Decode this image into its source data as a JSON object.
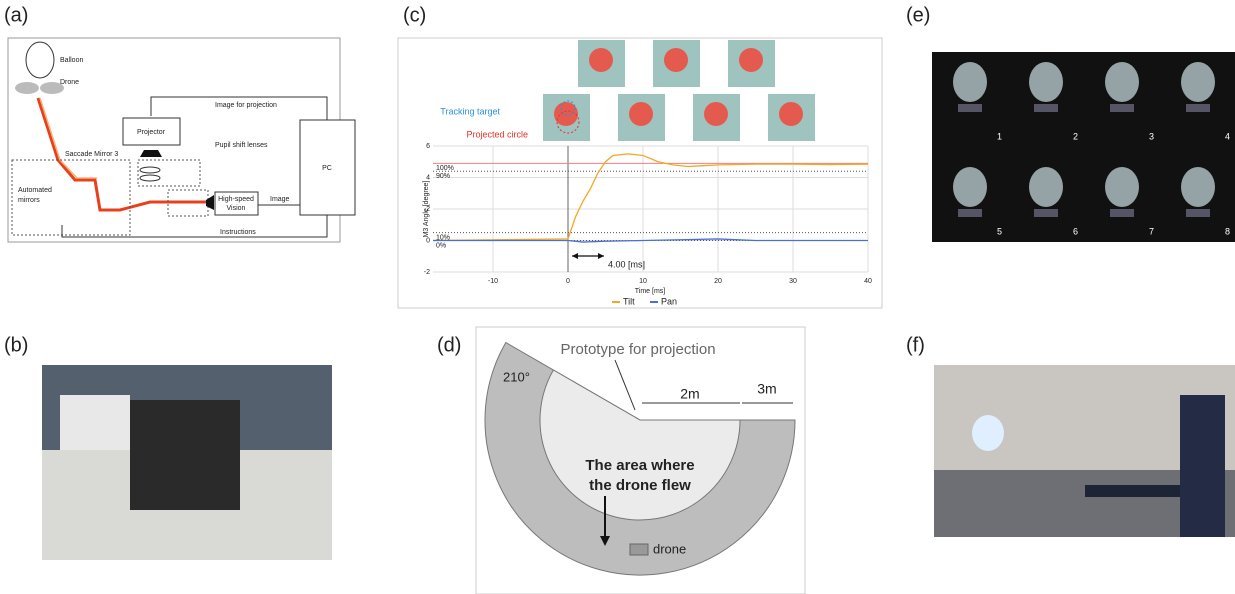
{
  "panels": {
    "a": "(a)",
    "b": "(b)",
    "c": "(c)",
    "d": "(d)",
    "e": "(e)",
    "f": "(f)"
  },
  "diagram_a": {
    "balloon": "Balloon",
    "drone": "Drone",
    "image_for_projection": "Image for projection",
    "projector": "Projector",
    "saccade_mirror": "Saccade Mirror 3",
    "pupil_shift_lenses": "Pupil shift lenses",
    "pc": "PC",
    "automated_mirrors": [
      "Automated",
      "mirrors"
    ],
    "high_speed_vision": [
      "High-speed",
      "Vision"
    ],
    "image": "Image",
    "instructions": "Instructions"
  },
  "chart_data": {
    "type": "line",
    "xlabel": "Time [ms]",
    "ylabel": "M3 Angle [degree]",
    "xlim": [
      -18,
      40
    ],
    "xticks": [
      -10,
      0,
      10,
      20,
      30,
      40
    ],
    "ylim": [
      -2,
      6
    ],
    "yticks": [
      -2,
      0,
      2,
      4,
      6
    ],
    "grid": true,
    "series": [
      {
        "name": "Tilt",
        "color": "#f5a623",
        "x": [
          -18,
          0,
          1,
          2,
          3,
          4,
          5,
          6,
          8,
          10,
          12,
          14,
          16,
          18,
          20,
          25,
          30,
          35,
          40
        ],
        "values": [
          0,
          0.1,
          1.5,
          2.5,
          3.3,
          4.3,
          5.0,
          5.4,
          5.5,
          5.4,
          5.0,
          4.8,
          4.7,
          4.75,
          4.8,
          4.85,
          4.85,
          4.82,
          4.85
        ]
      },
      {
        "name": "Pan",
        "color": "#4a6fd6",
        "x": [
          -18,
          0,
          2,
          5,
          10,
          15,
          20,
          25,
          30,
          40
        ],
        "values": [
          0,
          0,
          -0.1,
          -0.05,
          0,
          0.05,
          0.1,
          0,
          0,
          0
        ]
      }
    ],
    "ref_lines": [
      {
        "value": 4.9,
        "label": "100%"
      },
      {
        "value": 4.4,
        "label": "90%"
      },
      {
        "value": 0.5,
        "label": "10%"
      },
      {
        "value": 0,
        "label": "0%"
      }
    ],
    "annotations": {
      "tracking_target": "Tracking target",
      "projected_circle": "Projected circle",
      "delay": "4.00 [ms]"
    }
  },
  "diagram_d": {
    "title": "Prototype for projection",
    "angle": "210°",
    "inner": "2m",
    "outer": "3m",
    "area": [
      "The area where",
      "the drone flew"
    ],
    "legend": "drone"
  },
  "panel_e": {
    "frames": [
      "1",
      "2",
      "3",
      "4",
      "5",
      "6",
      "7",
      "8"
    ]
  }
}
